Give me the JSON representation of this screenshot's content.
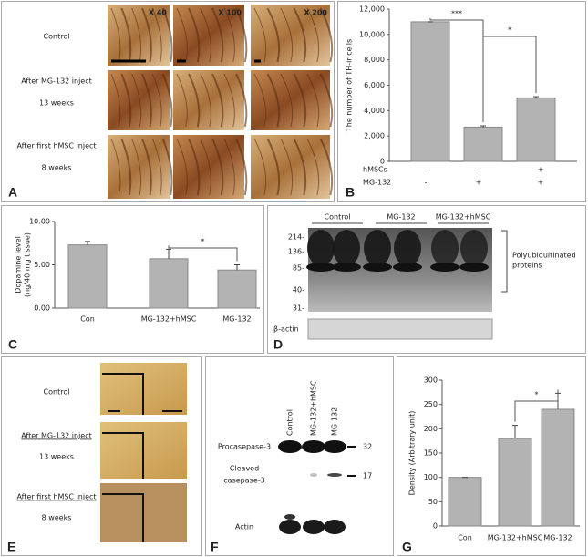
{
  "panels": {
    "A": {
      "letter": "A",
      "magnifications": [
        "X 40",
        "X 100",
        "X 200"
      ],
      "row_labels": [
        [
          "Control"
        ],
        [
          "After MG-132 inject",
          "13 weeks"
        ],
        [
          "After first hMSC inject",
          "8 weeks"
        ]
      ]
    },
    "D": {
      "letter": "D",
      "lanes": [
        "Control",
        "MG-132",
        "MG-132+hMSC"
      ],
      "markers": [
        "214-",
        "136-",
        "85-",
        "40-",
        "31-"
      ],
      "bracket_label": [
        "Polyubiquitinated",
        "proteins"
      ],
      "loading": "β-actin"
    },
    "E": {
      "letter": "E",
      "row_labels": [
        [
          "Control"
        ],
        [
          "After MG-132 inject",
          "13 weeks"
        ],
        [
          "After first hMSC inject",
          "8 weeks"
        ]
      ]
    },
    "F": {
      "letter": "F",
      "lanes": [
        "Control",
        "MG-132+hMSC",
        "MG-132"
      ],
      "bands": [
        {
          "label": [
            "Procasepase-3"
          ],
          "size": "32"
        },
        {
          "label": [
            "Cleaved",
            "casepase-3"
          ],
          "size": "17"
        },
        {
          "label": [
            "Actin"
          ]
        }
      ]
    }
  },
  "chart_data": [
    {
      "type": "bar",
      "letter": "B",
      "y_label": "The number of TH-ir cells",
      "categories": [
        null,
        null,
        null
      ],
      "values": [
        11000,
        2700,
        5000
      ],
      "errors": [
        0,
        100,
        100
      ],
      "color": "#b3b3b3",
      "ylim": [
        0,
        12000
      ],
      "yticks": [
        0,
        {
          "value": 2000,
          "label": "2,000"
        },
        {
          "value": 4000,
          "label": "4,000"
        },
        {
          "value": 6000,
          "label": "6,000"
        },
        {
          "value": 8000,
          "label": "8,000"
        },
        {
          "value": 10000,
          "label": "10,000"
        },
        {
          "value": 12000,
          "label": "12,000"
        }
      ],
      "annotations": [
        "***",
        "*"
      ],
      "table": [
        [
          "hMSCs",
          "-",
          "-",
          "+"
        ],
        [
          "MG-132",
          "-",
          "+",
          "+"
        ]
      ]
    },
    {
      "type": "bar",
      "letter": "C",
      "y_label": [
        "Dopamine level",
        "(ng/40 mg tissue)"
      ],
      "categories": [
        "Con",
        "MG-132+hMSC",
        "MG-132"
      ],
      "values": [
        7.3,
        5.7,
        4.4
      ],
      "errors": [
        0.4,
        1.1,
        0.6
      ],
      "color": "#b3b3b3",
      "ylim": [
        0,
        10
      ],
      "yticks": [
        {
          "value": 0,
          "label": "0.00"
        },
        {
          "value": 5,
          "label": "5.00"
        },
        {
          "value": 10,
          "label": "10.00"
        }
      ],
      "annotations": [
        "*"
      ]
    },
    {
      "type": "bar",
      "letter": "G",
      "y_label": "Density (Arbitrary unit)",
      "categories": [
        "Con",
        "MG-132+hMSC",
        "MG-132"
      ],
      "values": [
        100,
        180,
        240
      ],
      "errors": [
        0,
        27,
        33
      ],
      "color": "#b3b3b3",
      "ylim": [
        0,
        300
      ],
      "yticks": [
        0,
        50,
        100,
        150,
        200,
        250,
        300
      ],
      "annotations": [
        "*"
      ]
    }
  ]
}
